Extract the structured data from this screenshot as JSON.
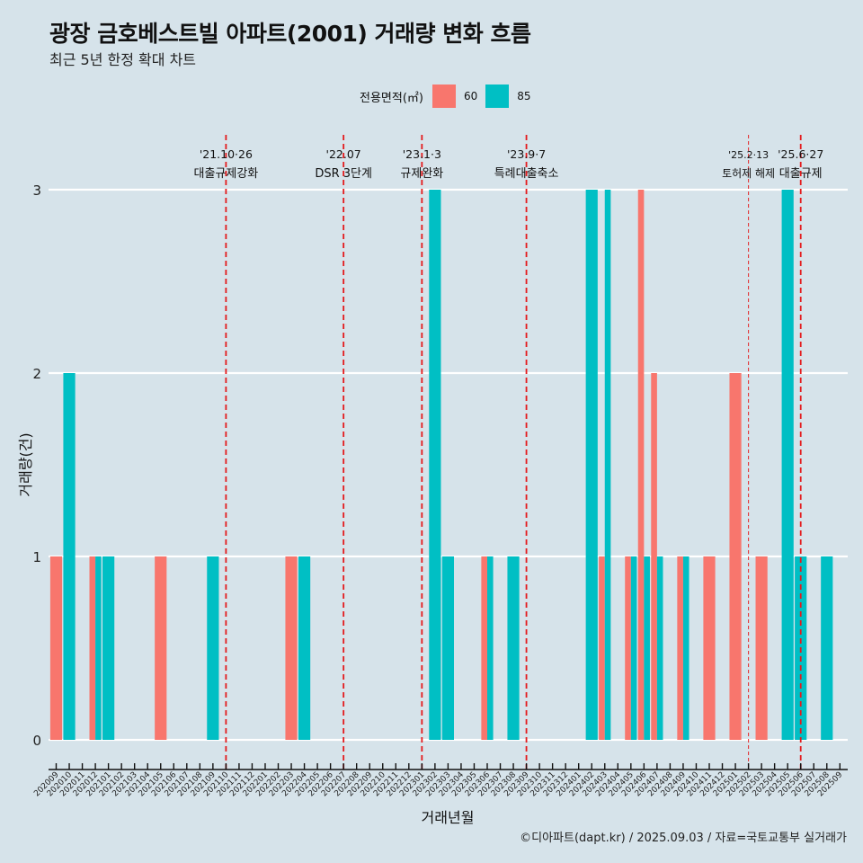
{
  "header": {
    "title": "광장 금호베스트빌 아파트(2001) 거래량 변화 흐름",
    "subtitle": "최근 5년 한정 확대 차트"
  },
  "legend": {
    "title": "전용면적(㎡)",
    "items": [
      {
        "label": "60",
        "color": "#f8766d"
      },
      {
        "label": "85",
        "color": "#00bfc4"
      }
    ]
  },
  "footer": {
    "credit": "©디아파트(dapt.kr) / 2025.09.03 / 자료=국토교통부 실거래가"
  },
  "chart_data": {
    "type": "bar",
    "title": "광장 금호베스트빌 아파트(2001) 거래량 변화 흐름",
    "subtitle": "최근 5년 한정 확대 차트",
    "xlabel": "거래년월",
    "ylabel": "거래량(건)",
    "ylim": [
      0,
      3
    ],
    "yticks": [
      0,
      1,
      2,
      3
    ],
    "grid": true,
    "legend_position": "top",
    "bar_mode": "dodge",
    "categories": [
      "202009",
      "202010",
      "202011",
      "202012",
      "202101",
      "202102",
      "202103",
      "202104",
      "202105",
      "202106",
      "202107",
      "202108",
      "202109",
      "202110",
      "202111",
      "202112",
      "202201",
      "202202",
      "202203",
      "202204",
      "202205",
      "202206",
      "202207",
      "202208",
      "202209",
      "202210",
      "202211",
      "202212",
      "202301",
      "202302",
      "202303",
      "202304",
      "202305",
      "202306",
      "202307",
      "202308",
      "202309",
      "202310",
      "202311",
      "202312",
      "202401",
      "202402",
      "202403",
      "202404",
      "202405",
      "202406",
      "202407",
      "202408",
      "202409",
      "202410",
      "202411",
      "202412",
      "202501",
      "202502",
      "202503",
      "202504",
      "202505",
      "202506",
      "202507",
      "202508",
      "202509"
    ],
    "series": [
      {
        "name": "60",
        "color": "#f8766d",
        "values": {
          "202009": 1,
          "202012": 1,
          "202105": 1,
          "202203": 1,
          "202306": 1,
          "202403": 1,
          "202405": 1,
          "202406": 3,
          "202407": 2,
          "202409": 1,
          "202411": 1,
          "202501": 2,
          "202503": 1
        }
      },
      {
        "name": "85",
        "color": "#00bfc4",
        "values": {
          "202010": 2,
          "202012": 1,
          "202101": 1,
          "202109": 1,
          "202204": 1,
          "202302": 3,
          "202303": 1,
          "202306": 1,
          "202308": 1,
          "202402": 3,
          "202403": 3,
          "202405": 1,
          "202406": 1,
          "202407": 1,
          "202409": 1,
          "202505": 3,
          "202506": 1,
          "202508": 1
        }
      }
    ],
    "annotations": [
      {
        "x": "202110",
        "date": "'21.10·26",
        "label": "대출규제강화",
        "style": "dashed"
      },
      {
        "x": "202207",
        "date": "'22.07",
        "label": "DSR 3단계",
        "style": "dashed"
      },
      {
        "x": "202301",
        "date": "'23.1·3",
        "label": "규제완화",
        "style": "dashed"
      },
      {
        "x": "202309",
        "date": "'23.9·7",
        "label": "특례대출축소",
        "style": "dashed"
      },
      {
        "x": "202502",
        "date": "'25.2·13",
        "label": "토허제 해제",
        "style": "dashed-thin"
      },
      {
        "x": "202506",
        "date": "'25.6·27",
        "label": "대출규제",
        "style": "dashed"
      }
    ],
    "annotation_color": "#e41a1c"
  }
}
